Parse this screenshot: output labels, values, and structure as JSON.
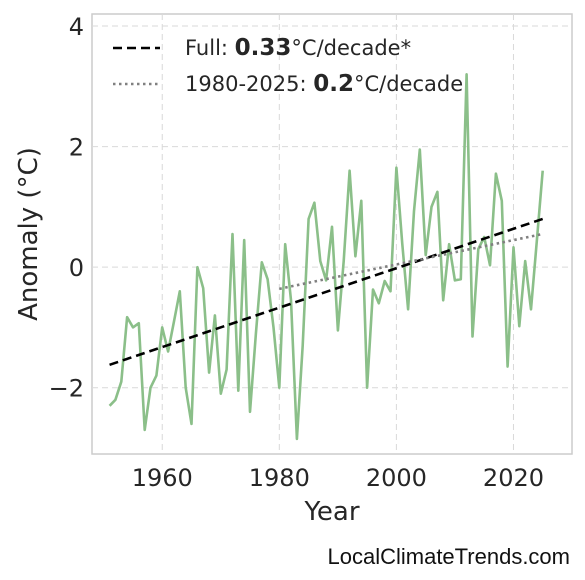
{
  "chart_data": {
    "type": "line",
    "xlabel": "Year",
    "ylabel": "Anomaly (°C)",
    "xlim": [
      1948,
      2030
    ],
    "ylim": [
      -3.1,
      4.2
    ],
    "xticks": [
      1960,
      1980,
      2000,
      2020
    ],
    "yticks": [
      4,
      2,
      0,
      -2
    ],
    "ytick_labels": [
      "4",
      "2",
      "0",
      "−2"
    ],
    "grid": true,
    "legend_position": "top-left",
    "series": [
      {
        "color": "#8bbf89",
        "x": [
          1951,
          1952,
          1953,
          1954,
          1955,
          1956,
          1957,
          1958,
          1959,
          1960,
          1961,
          1962,
          1963,
          1964,
          1965,
          1966,
          1967,
          1968,
          1969,
          1970,
          1971,
          1972,
          1973,
          1974,
          1975,
          1976,
          1977,
          1978,
          1979,
          1980,
          1981,
          1982,
          1983,
          1984,
          1985,
          1986,
          1987,
          1988,
          1989,
          1990,
          1991,
          1992,
          1993,
          1994,
          1995,
          1996,
          1997,
          1998,
          1999,
          2000,
          2001,
          2002,
          2003,
          2004,
          2005,
          2006,
          2007,
          2008,
          2009,
          2010,
          2011,
          2012,
          2013,
          2014,
          2015,
          2016,
          2017,
          2018,
          2019,
          2020,
          2021,
          2022,
          2023,
          2024,
          2025
        ],
        "y": [
          -2.3,
          -2.2,
          -1.9,
          -0.83,
          -1.0,
          -0.93,
          -2.7,
          -2.0,
          -1.8,
          -1.0,
          -1.4,
          -0.9,
          -0.4,
          -2.0,
          -2.6,
          0.0,
          -0.35,
          -1.75,
          -0.8,
          -2.1,
          -1.7,
          0.55,
          -2.05,
          0.45,
          -2.4,
          -1.1,
          0.08,
          -0.2,
          -1.0,
          -2.0,
          0.38,
          -0.55,
          -2.85,
          -1.3,
          0.8,
          1.07,
          0.1,
          -0.22,
          0.67,
          -1.05,
          0.1,
          1.6,
          0.18,
          1.1,
          -2.0,
          -0.37,
          -0.6,
          -0.23,
          -0.4,
          1.65,
          0.4,
          -0.7,
          0.93,
          1.95,
          0.2,
          1.0,
          1.25,
          -0.55,
          0.38,
          -0.22,
          -0.2,
          3.2,
          -1.15,
          0.3,
          0.5,
          0.03,
          1.55,
          1.1,
          -1.65,
          0.33,
          -0.98,
          0.1,
          -0.7,
          0.45,
          1.6
        ]
      }
    ],
    "trends": [
      {
        "label_prefix": "Full: ",
        "label_value": "0.33",
        "label_suffix": "°C/decade*",
        "style": "dashed",
        "color": "#000000",
        "x": [
          1951,
          2025
        ],
        "y": [
          -1.62,
          0.8
        ]
      },
      {
        "label_prefix": "1980-2025: ",
        "label_value": "0.2",
        "label_suffix": "°C/decade",
        "style": "dotted",
        "color": "#808080",
        "x": [
          1980,
          2025
        ],
        "y": [
          -0.36,
          0.55
        ]
      }
    ]
  },
  "credit": "LocalClimateTrends.com"
}
